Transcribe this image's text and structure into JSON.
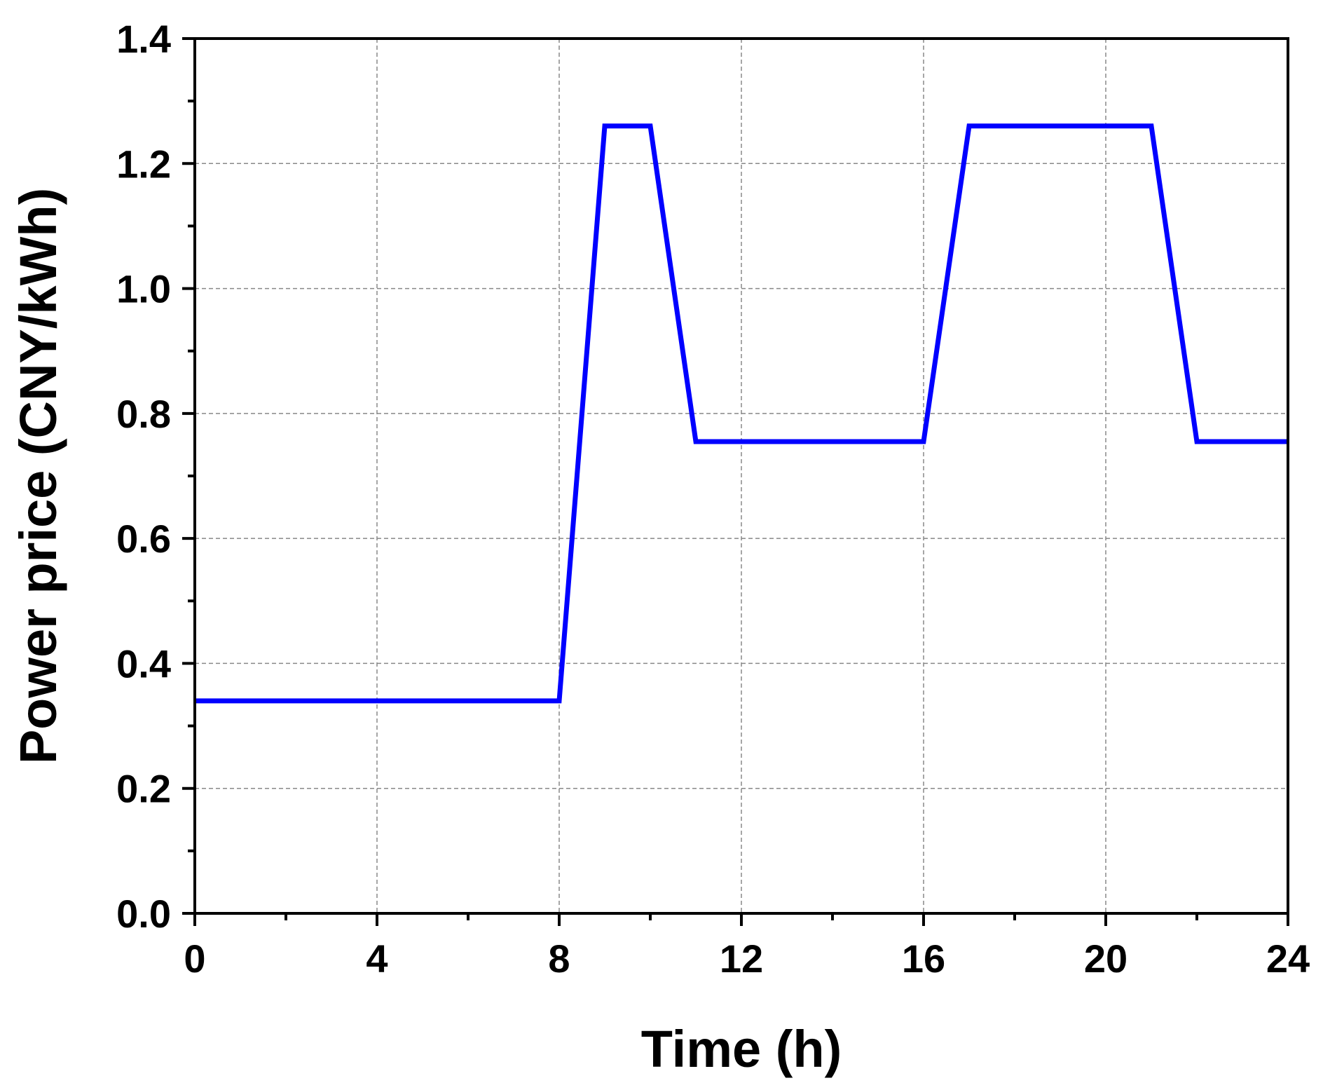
{
  "chart_data": {
    "type": "line",
    "title": "",
    "xlabel": "Time (h)",
    "ylabel": "Power price (CNY/kWh)",
    "xlim": [
      0,
      24
    ],
    "ylim": [
      0,
      1.4
    ],
    "x_ticks": [
      "0",
      "4",
      "8",
      "12",
      "16",
      "20",
      "24"
    ],
    "x_tick_values": [
      0,
      4,
      8,
      12,
      16,
      20,
      24
    ],
    "y_ticks": [
      "0.0",
      "0.2",
      "0.4",
      "0.6",
      "0.8",
      "1.0",
      "1.2",
      "1.4"
    ],
    "y_tick_values": [
      0,
      0.2,
      0.4,
      0.6,
      0.8,
      1.0,
      1.2,
      1.4
    ],
    "x_minor_step": 2,
    "y_minor_step": 0.1,
    "grid": true,
    "legend": "none",
    "series": [
      {
        "color": "#0000ff",
        "x": [
          0,
          8,
          9,
          10,
          11,
          16,
          17,
          21,
          22,
          24
        ],
        "y": [
          0.34,
          0.34,
          1.26,
          1.26,
          0.755,
          0.755,
          1.26,
          1.26,
          0.755,
          0.755
        ]
      }
    ]
  }
}
